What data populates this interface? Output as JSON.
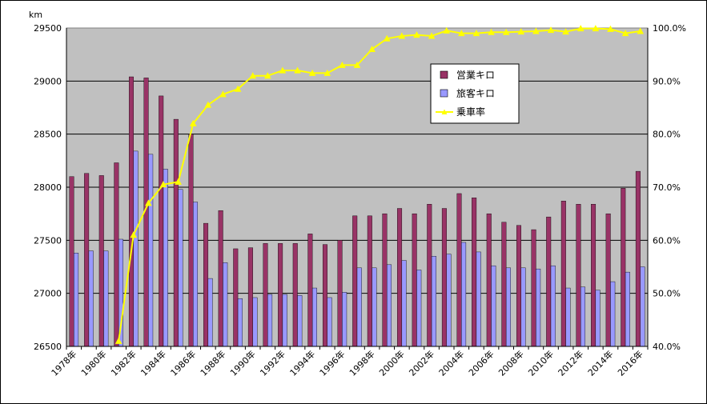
{
  "chart_data": {
    "type": "bar",
    "y_unit_label": "km",
    "categories": [
      "1978年",
      "1979年",
      "1980年",
      "1981年",
      "1982年",
      "1983年",
      "1984年",
      "1985年",
      "1986年",
      "1987年",
      "1988年",
      "1989年",
      "1990年",
      "1991年",
      "1992年",
      "1993年",
      "1994年",
      "1995年",
      "1996年",
      "1997年",
      "1998年",
      "1999年",
      "2000年",
      "2001年",
      "2002年",
      "2003年",
      "2004年",
      "2005年",
      "2006年",
      "2007年",
      "2008年",
      "2009年",
      "2010年",
      "2011年",
      "2012年",
      "2013年",
      "2014年",
      "2015年",
      "2016年"
    ],
    "x_tick_labels": [
      "1978年",
      "1980年",
      "1982年",
      "1984年",
      "1986年",
      "1988年",
      "1990年",
      "1992年",
      "1994年",
      "1996年",
      "1998年",
      "2000年",
      "2002年",
      "2004年",
      "2006年",
      "2008年",
      "2010年",
      "2012年",
      "2014年",
      "2016年"
    ],
    "series": [
      {
        "name": "営業キロ",
        "type": "bar",
        "axis": "left",
        "color": "#993366",
        "values": [
          28100,
          28130,
          28110,
          28230,
          29040,
          29030,
          28860,
          28640,
          28500,
          27660,
          27780,
          27420,
          27430,
          27470,
          27470,
          27470,
          27560,
          27460,
          27500,
          27730,
          27730,
          27750,
          27800,
          27750,
          27840,
          27800,
          27940,
          27900,
          27750,
          27670,
          27640,
          27600,
          27720,
          27870,
          27840,
          27840,
          27750,
          27990,
          28150
        ]
      },
      {
        "name": "旅客キロ",
        "type": "bar",
        "axis": "left",
        "color": "#9999FF",
        "values": [
          27380,
          27400,
          27400,
          27510,
          28340,
          28310,
          28170,
          27980,
          27860,
          27140,
          27290,
          26950,
          26960,
          26990,
          26990,
          26980,
          27050,
          26960,
          27010,
          27240,
          27240,
          27270,
          27310,
          27220,
          27350,
          27370,
          27480,
          27390,
          27260,
          27240,
          27240,
          27230,
          27260,
          27050,
          27060,
          27030,
          27110,
          27200,
          27250
        ]
      },
      {
        "name": "乗車率",
        "type": "line",
        "axis": "right",
        "color": "#FFFF00",
        "marker": "triangle",
        "values": [
          null,
          null,
          null,
          41.0,
          61.0,
          67.0,
          70.5,
          71.0,
          82.0,
          85.5,
          87.5,
          88.5,
          91.0,
          91.0,
          92.0,
          92.0,
          91.5,
          91.5,
          93.0,
          93.0,
          96.0,
          98.0,
          98.5,
          98.7,
          98.5,
          99.5,
          99.0,
          99.0,
          99.2,
          99.2,
          99.3,
          99.4,
          99.6,
          99.3,
          99.9,
          99.9,
          99.8,
          99.0,
          99.4
        ]
      }
    ],
    "y_left": {
      "min": 26500,
      "max": 29500,
      "ticks": [
        "26500",
        "27000",
        "27500",
        "28000",
        "28500",
        "29000",
        "29500"
      ]
    },
    "y_right": {
      "min": 40,
      "max": 100,
      "ticks": [
        "40.0%",
        "50.0%",
        "60.0%",
        "70.0%",
        "80.0%",
        "90.0%",
        "100.0%"
      ]
    },
    "grid": true,
    "plot_background": "#C0C0C0",
    "legend_position": "top-right"
  }
}
